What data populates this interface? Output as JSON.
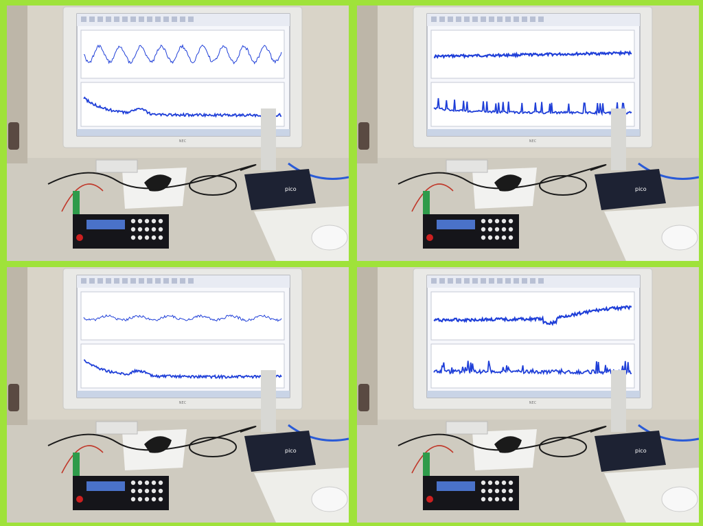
{
  "colors": {
    "frame": "#9fe23a",
    "wall": "#d9d4c8",
    "desk": "#cfcbc0",
    "monitor_bezel": "#e9e9e6",
    "screen_bg": "#f6f7fb",
    "signal": "#1f3fd8",
    "scope_box": "#1d2233",
    "board": "#15151a",
    "lcd": "#4a72c9",
    "cloth": "#f2f2f0",
    "mousepad": "#eeeeea"
  },
  "monitor": {
    "brand": "NEC"
  },
  "oscilloscope": {
    "brand": "pico"
  },
  "panels": [
    {
      "id": "top-left",
      "upper_wave": "wavy",
      "lower_wave": "decay"
    },
    {
      "id": "top-right",
      "upper_wave": "flat",
      "lower_wave": "spiky"
    },
    {
      "id": "bottom-left",
      "upper_wave": "gentle",
      "lower_wave": "decay"
    },
    {
      "id": "bottom-right",
      "upper_wave": "rise",
      "lower_wave": "noisy"
    }
  ]
}
